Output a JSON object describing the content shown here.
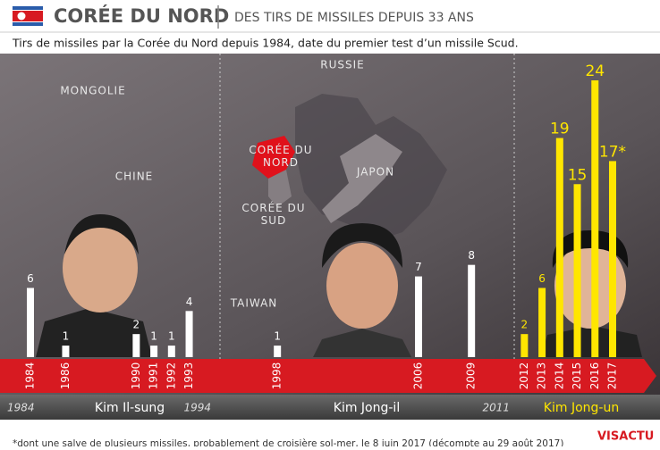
{
  "chart_data": {
    "type": "bar",
    "title": "CORÉE DU NORD",
    "header_subtitle": "DES TIRS DE MISSILES DEPUIS 33 ANS",
    "subtitle": "Tirs de missiles par la Corée du Nord depuis 1984, date du premier test d’un missile Scud.",
    "x": [
      1984,
      1986,
      1990,
      1991,
      1992,
      1993,
      1998,
      2006,
      2009,
      2012,
      2013,
      2014,
      2015,
      2016,
      2017
    ],
    "values": [
      6,
      1,
      2,
      1,
      1,
      4,
      1,
      7,
      8,
      2,
      6,
      19,
      15,
      24,
      17
    ],
    "value_labels": [
      "6",
      "1",
      "2",
      "1",
      "1",
      "4",
      "1",
      "7",
      "8",
      "2",
      "6",
      "19",
      "15",
      "24",
      "17*"
    ],
    "xlim": [
      1984,
      2017
    ],
    "ylim": [
      0,
      24
    ],
    "eras": [
      {
        "name": "Kim Il-sung",
        "start": 1984,
        "end": 1994,
        "color": "#ffffff"
      },
      {
        "name": "Kim Jong-il",
        "start": 1994,
        "end": 2011,
        "color": "#ffffff"
      },
      {
        "name": "Kim Jong-un",
        "start": 2011,
        "color": "#ffe600"
      }
    ],
    "map_labels": [
      "MONGOLIE",
      "CHINE",
      "RUSSIE",
      "CORÉE DU NORD",
      "JAPON",
      "CORÉE DU SUD",
      "TAIWAN"
    ],
    "footnote": "*dont une salve de plusieurs missiles, probablement de croisière sol-mer, le 8 juin 2017 (décompte au 29 août 2017)",
    "source": "VISACTU"
  }
}
